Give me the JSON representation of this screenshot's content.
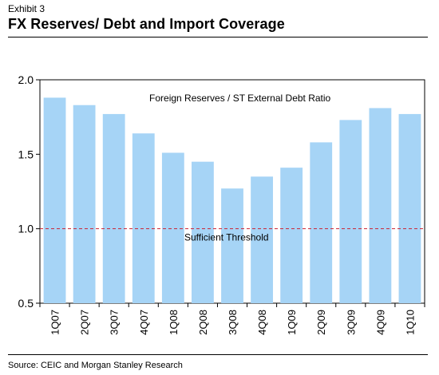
{
  "header": {
    "exhibit": "Exhibit 3",
    "title": "FX Reserves/ Debt and Import Coverage"
  },
  "footer": {
    "source": "Source: CEIC and Morgan Stanley Research"
  },
  "colors": {
    "bar": "#a6d4f6",
    "threshold": "#cc2233",
    "plot_border": "#000000"
  },
  "chart_data": {
    "type": "bar",
    "title": "",
    "xlabel": "",
    "ylabel": "",
    "categories": [
      "1Q07",
      "2Q07",
      "3Q07",
      "4Q07",
      "1Q08",
      "2Q08",
      "3Q08",
      "4Q08",
      "1Q09",
      "2Q09",
      "3Q09",
      "4Q09",
      "1Q10"
    ],
    "series": [
      {
        "name": "Foreign Reserves / ST External Debt Ratio",
        "values": [
          1.88,
          1.83,
          1.77,
          1.64,
          1.51,
          1.45,
          1.27,
          1.35,
          1.41,
          1.58,
          1.73,
          1.81,
          1.77
        ]
      }
    ],
    "ylim": [
      0.5,
      2.0
    ],
    "yticks": [
      "0.5",
      "1.0",
      "1.5",
      "2.0"
    ],
    "threshold": {
      "value": 1.0,
      "label": "Sufficient Threshold"
    },
    "legend": "top-center",
    "grid": false
  }
}
